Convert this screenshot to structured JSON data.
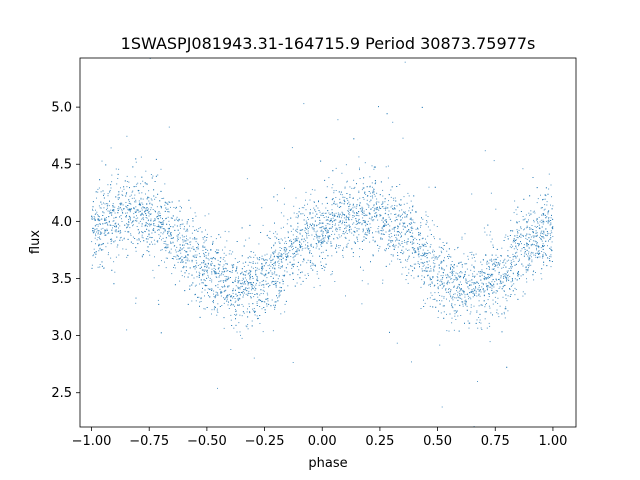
{
  "chart_data": {
    "type": "scatter",
    "title": "1SWASPJ081943.31-164715.9 Period 30873.75977s",
    "xlabel": "phase",
    "ylabel": "flux",
    "xlim": [
      -1.05,
      1.1
    ],
    "ylim": [
      2.2,
      5.43
    ],
    "x_ticks": [
      -1.0,
      -0.75,
      -0.5,
      -0.25,
      0.0,
      0.25,
      0.5,
      0.75,
      1.0
    ],
    "x_tick_labels": [
      "−1.00",
      "−0.75",
      "−0.50",
      "−0.25",
      "0.00",
      "0.25",
      "0.50",
      "0.75",
      "1.00"
    ],
    "y_ticks": [
      2.5,
      3.0,
      3.5,
      4.0,
      4.5,
      5.0
    ],
    "y_tick_labels": [
      "2.5",
      "3.0",
      "3.5",
      "4.0",
      "4.5",
      "5.0"
    ],
    "grid": false,
    "legend": "none",
    "point_color": "#1f77b4",
    "series": [
      {
        "x": [
          -1.0,
          -0.95,
          -0.9,
          -0.85,
          -0.8,
          -0.75,
          -0.7,
          -0.65,
          -0.6,
          -0.55,
          -0.5,
          -0.45,
          -0.4,
          -0.35,
          -0.3,
          -0.25,
          -0.2,
          -0.15,
          -0.1,
          -0.05,
          0.0,
          0.05,
          0.1,
          0.15,
          0.2,
          0.25,
          0.3,
          0.35,
          0.4,
          0.45,
          0.5,
          0.55,
          0.6,
          0.65,
          0.7,
          0.75,
          0.8,
          0.85,
          0.9,
          0.95,
          1.0
        ],
        "y": [
          3.92,
          3.98,
          4.02,
          4.05,
          4.06,
          4.04,
          3.98,
          3.9,
          3.8,
          3.68,
          3.57,
          3.48,
          3.43,
          3.41,
          3.43,
          3.5,
          3.6,
          3.7,
          3.8,
          3.88,
          3.93,
          3.98,
          4.02,
          4.05,
          4.06,
          4.04,
          3.98,
          3.9,
          3.8,
          3.68,
          3.57,
          3.48,
          3.43,
          3.41,
          3.43,
          3.5,
          3.6,
          3.7,
          3.8,
          3.88,
          3.92
        ]
      }
    ],
    "scatter_spread": 0.17,
    "outlier_fraction": 0.04
  }
}
